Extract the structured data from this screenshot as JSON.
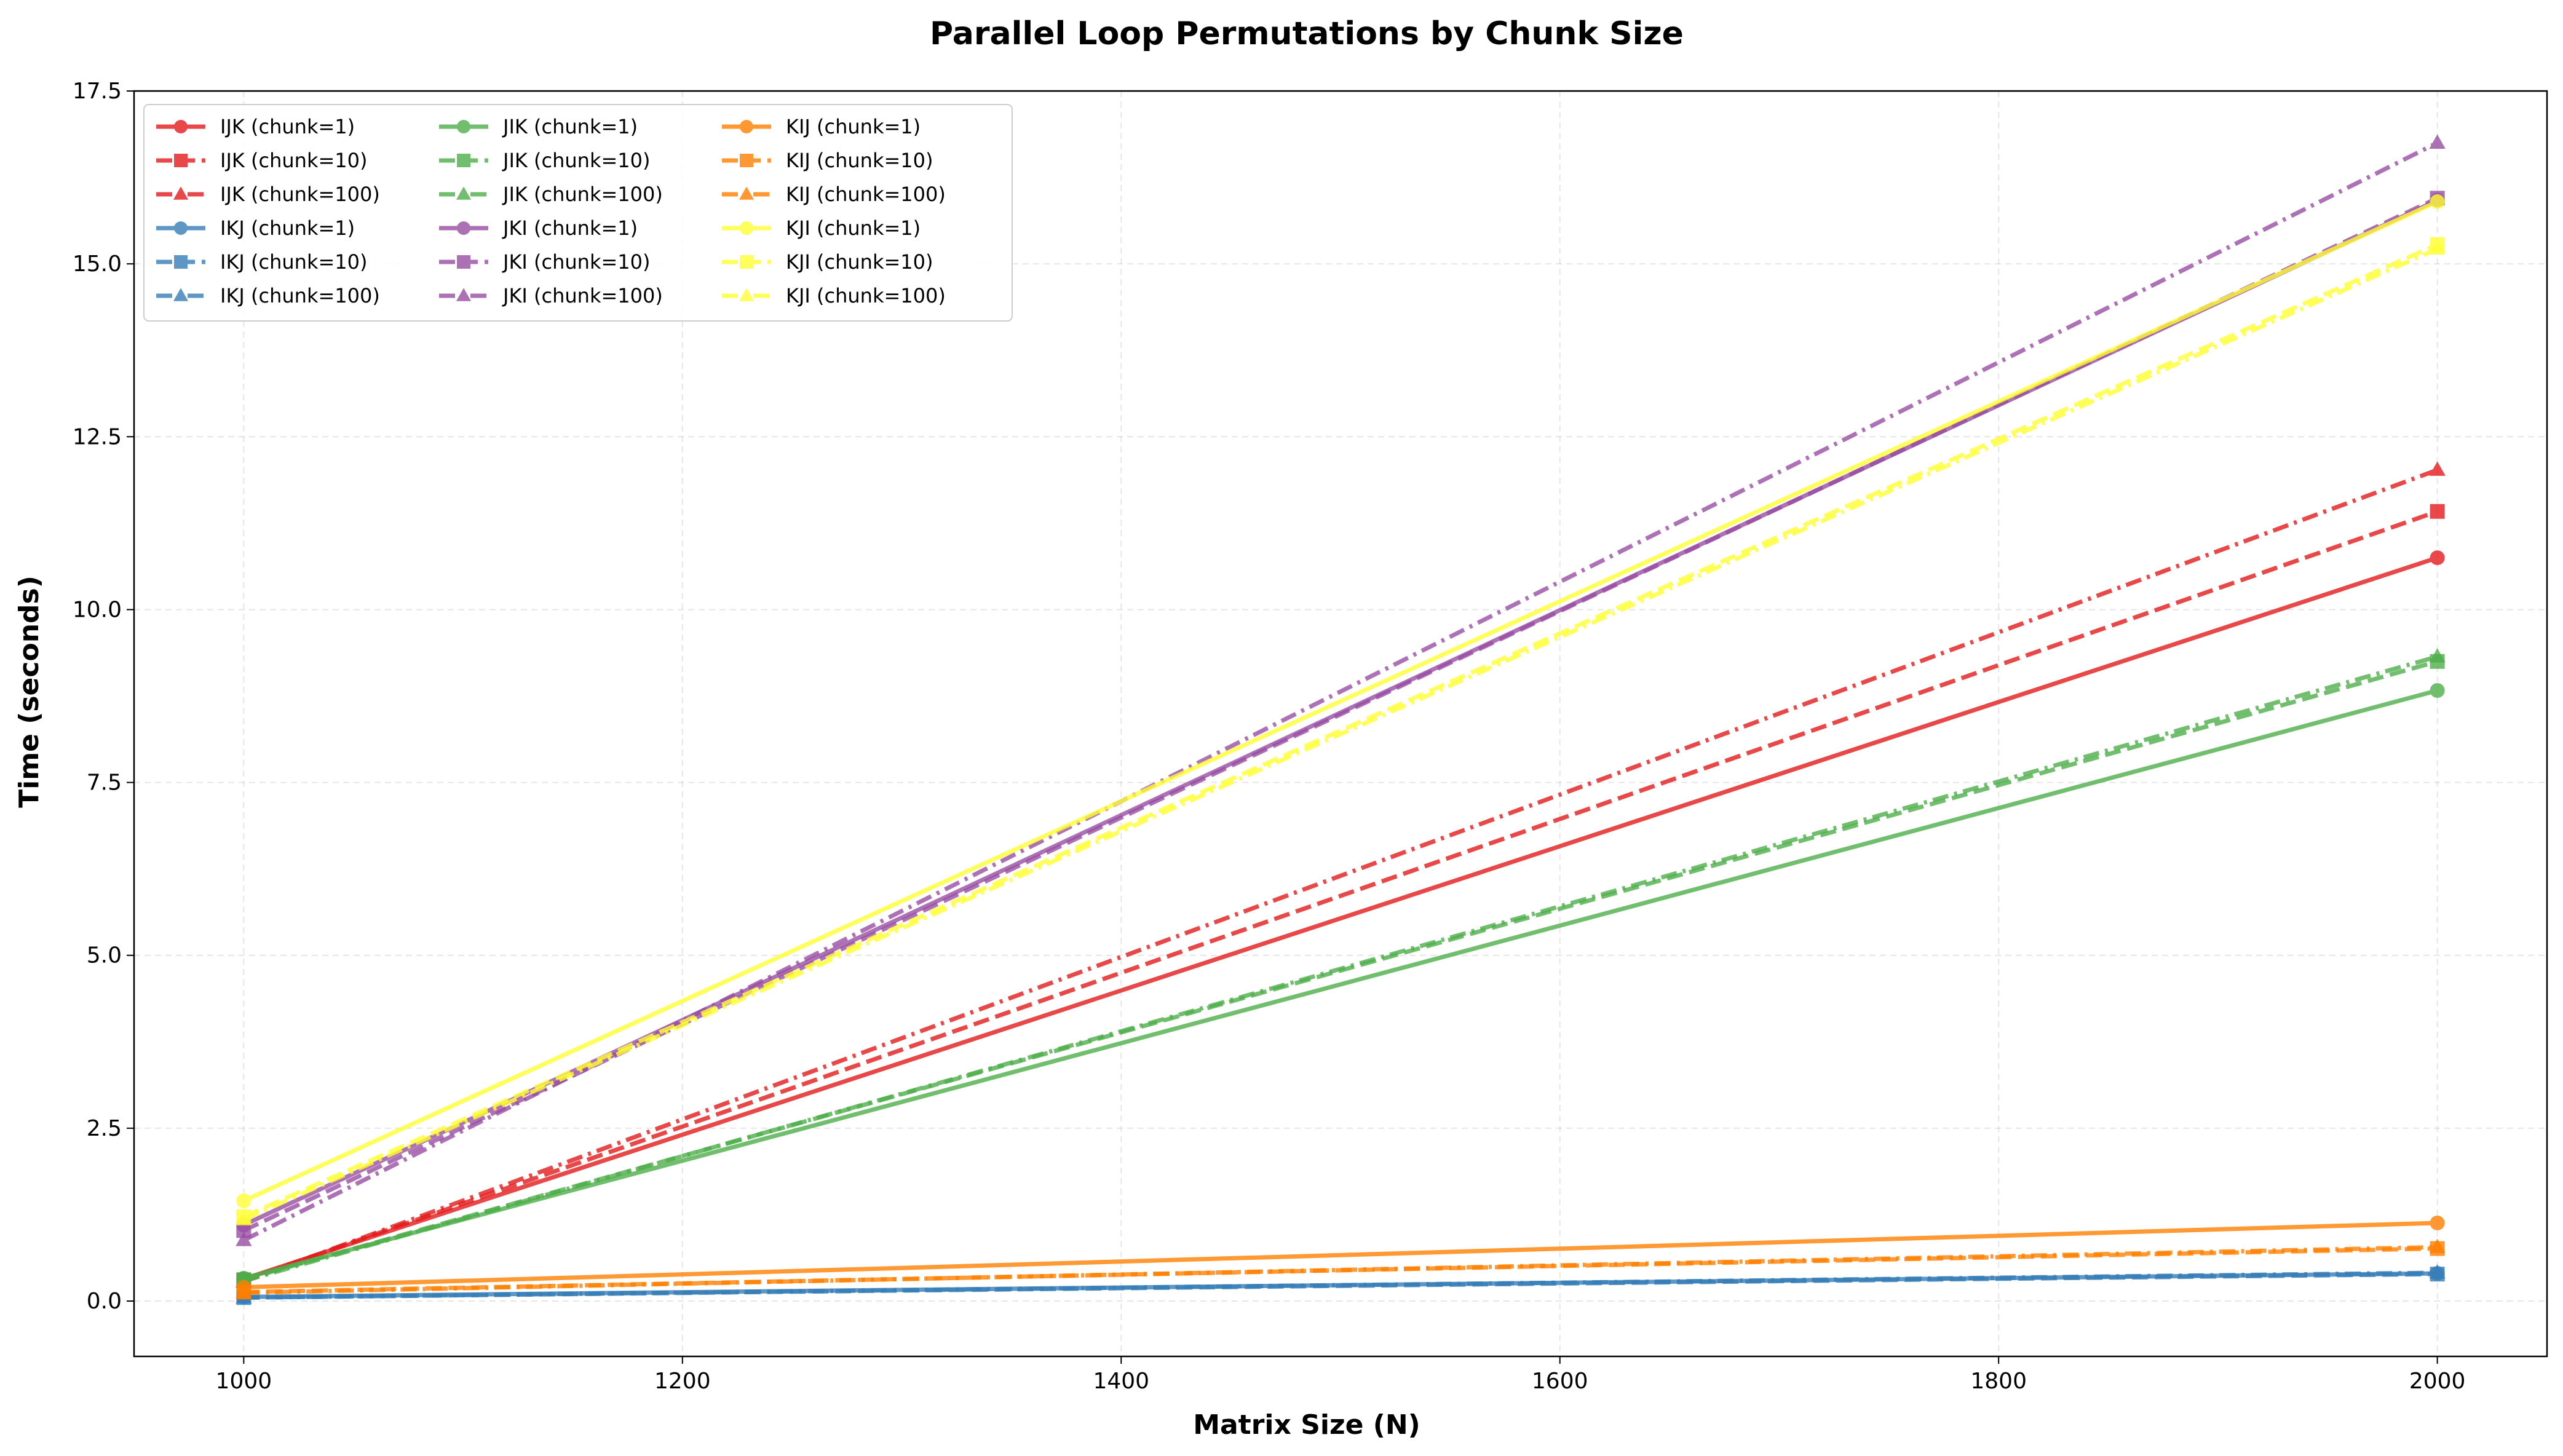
{
  "chart_data": {
    "type": "line",
    "title": "Parallel Loop Permutations by Chunk Size",
    "xlabel": "Matrix Size (N)",
    "ylabel": "Time (seconds)",
    "x": [
      1000,
      2000
    ],
    "xlim": [
      950,
      2050
    ],
    "ylim": [
      -0.8,
      17.5
    ],
    "xticks": [
      1000,
      1200,
      1400,
      1600,
      1800,
      2000
    ],
    "yticks": [
      0.0,
      2.5,
      5.0,
      7.5,
      10.0,
      12.5,
      15.0,
      17.5
    ],
    "xtick_labels": [
      "1000",
      "1200",
      "1400",
      "1600",
      "1800",
      "2000"
    ],
    "ytick_labels": [
      "0.0",
      "2.5",
      "5.0",
      "7.5",
      "10.0",
      "12.5",
      "15.0",
      "17.5"
    ],
    "grid": true,
    "legend_position": "top-left",
    "legend_columns": 3,
    "series": [
      {
        "name": "IJK (chunk=1)",
        "color": "#e41a1c",
        "dash": "solid",
        "marker": "circle",
        "values": [
          0.32,
          10.75
        ]
      },
      {
        "name": "IJK (chunk=10)",
        "color": "#e41a1c",
        "dash": "dashed",
        "marker": "square",
        "values": [
          0.3,
          11.42
        ]
      },
      {
        "name": "IJK (chunk=100)",
        "color": "#e41a1c",
        "dash": "dashdot",
        "marker": "triangle",
        "values": [
          0.28,
          12.02
        ]
      },
      {
        "name": "IKJ (chunk=1)",
        "color": "#377eb8",
        "dash": "solid",
        "marker": "circle",
        "values": [
          0.06,
          0.4
        ]
      },
      {
        "name": "IKJ (chunk=10)",
        "color": "#377eb8",
        "dash": "dashed",
        "marker": "square",
        "values": [
          0.05,
          0.39
        ]
      },
      {
        "name": "IKJ (chunk=100)",
        "color": "#377eb8",
        "dash": "dashdot",
        "marker": "triangle",
        "values": [
          0.05,
          0.41
        ]
      },
      {
        "name": "JIK (chunk=1)",
        "color": "#4daf4a",
        "dash": "solid",
        "marker": "circle",
        "values": [
          0.33,
          8.83
        ]
      },
      {
        "name": "JIK (chunk=10)",
        "color": "#4daf4a",
        "dash": "dashed",
        "marker": "square",
        "values": [
          0.31,
          9.25
        ]
      },
      {
        "name": "JIK (chunk=100)",
        "color": "#4daf4a",
        "dash": "dashdot",
        "marker": "triangle",
        "values": [
          0.29,
          9.32
        ]
      },
      {
        "name": "JKI (chunk=1)",
        "color": "#984ea3",
        "dash": "solid",
        "marker": "circle",
        "values": [
          1.1,
          15.92
        ]
      },
      {
        "name": "JKI (chunk=10)",
        "color": "#984ea3",
        "dash": "dashed",
        "marker": "square",
        "values": [
          1.02,
          15.95
        ]
      },
      {
        "name": "JKI (chunk=100)",
        "color": "#984ea3",
        "dash": "dashdot",
        "marker": "triangle",
        "values": [
          0.88,
          16.75
        ]
      },
      {
        "name": "KIJ (chunk=1)",
        "color": "#ff7f00",
        "dash": "solid",
        "marker": "circle",
        "values": [
          0.2,
          1.13
        ]
      },
      {
        "name": "KIJ (chunk=10)",
        "color": "#ff7f00",
        "dash": "dashed",
        "marker": "square",
        "values": [
          0.13,
          0.76
        ]
      },
      {
        "name": "KIJ (chunk=100)",
        "color": "#ff7f00",
        "dash": "dashdot",
        "marker": "triangle",
        "values": [
          0.12,
          0.78
        ]
      },
      {
        "name": "KJI (chunk=1)",
        "color": "#ffff33",
        "dash": "solid",
        "marker": "circle",
        "values": [
          1.45,
          15.9
        ]
      },
      {
        "name": "KJI (chunk=10)",
        "color": "#ffff33",
        "dash": "dashed",
        "marker": "square",
        "values": [
          1.22,
          15.28
        ]
      },
      {
        "name": "KJI (chunk=100)",
        "color": "#ffff33",
        "dash": "dashdot",
        "marker": "triangle",
        "values": [
          1.18,
          15.22
        ]
      }
    ]
  }
}
